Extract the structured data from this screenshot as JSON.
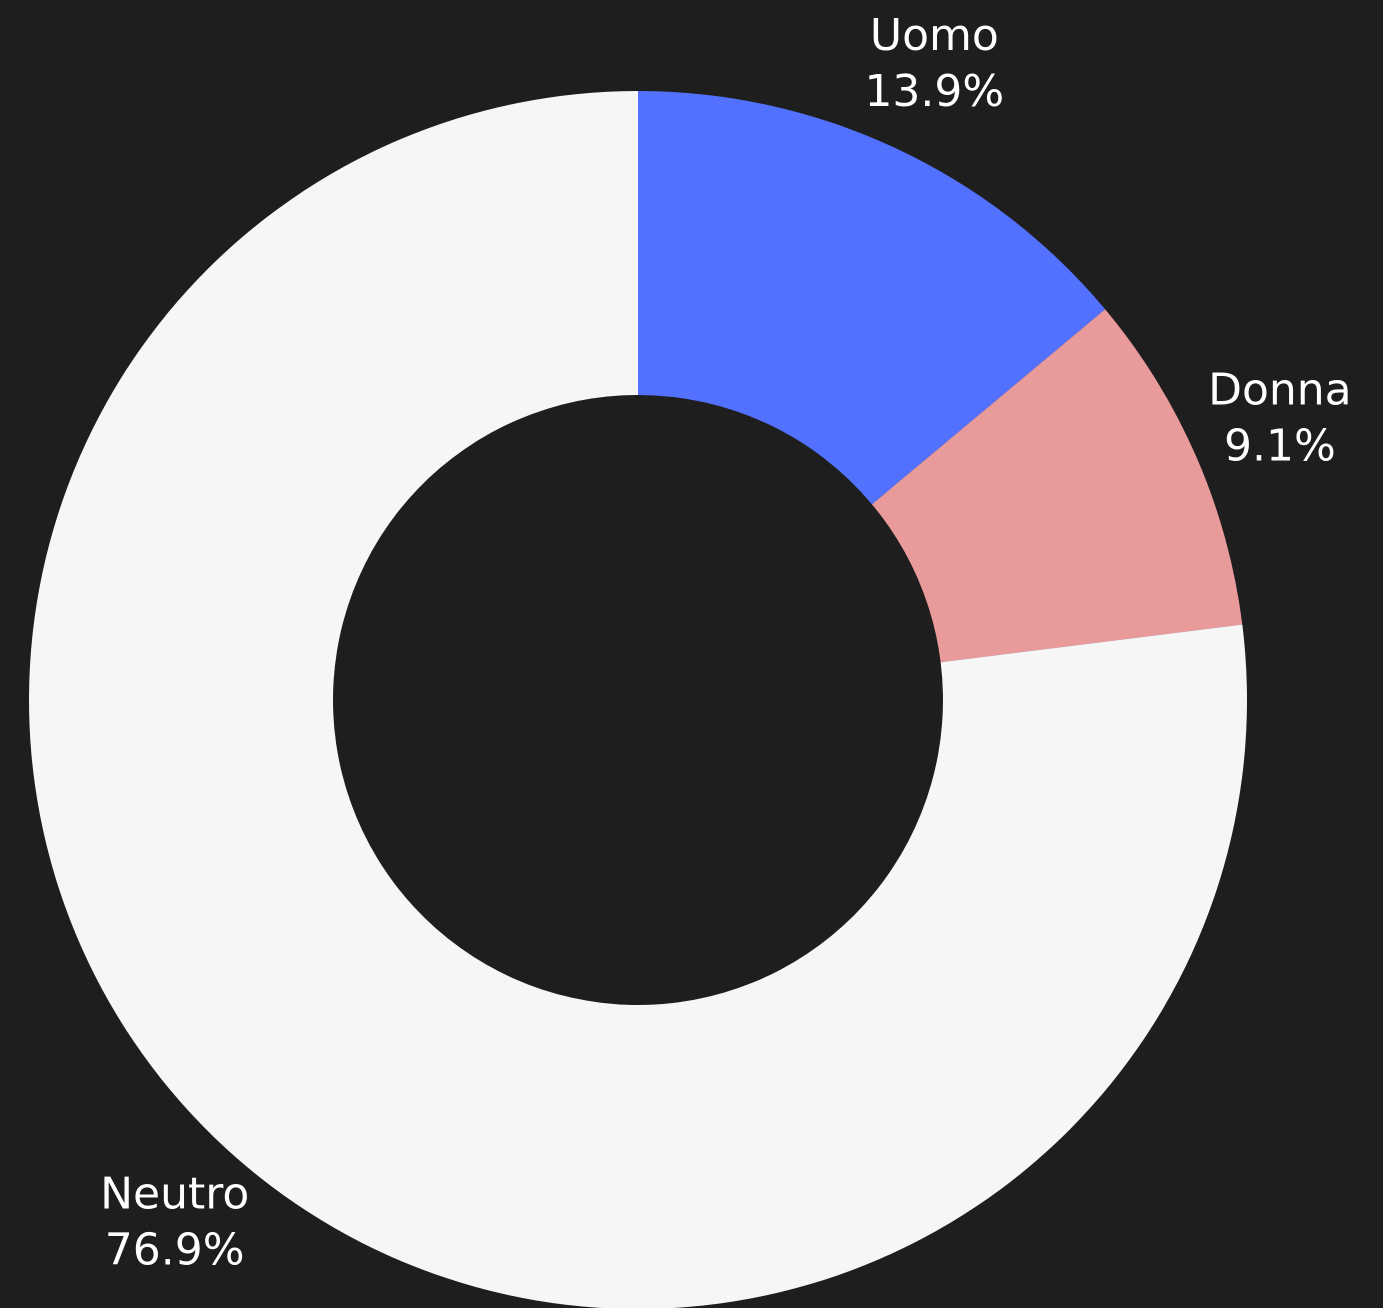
{
  "chart_data": {
    "type": "pie",
    "categories": [
      "Uomo",
      "Donna",
      "Neutro"
    ],
    "values": [
      13.9,
      9.1,
      76.9
    ],
    "value_labels": [
      "13.9%",
      "9.1%",
      "76.9%"
    ],
    "colors": [
      "#5271ff",
      "#e99a9b",
      "#f6f6f6"
    ]
  }
}
